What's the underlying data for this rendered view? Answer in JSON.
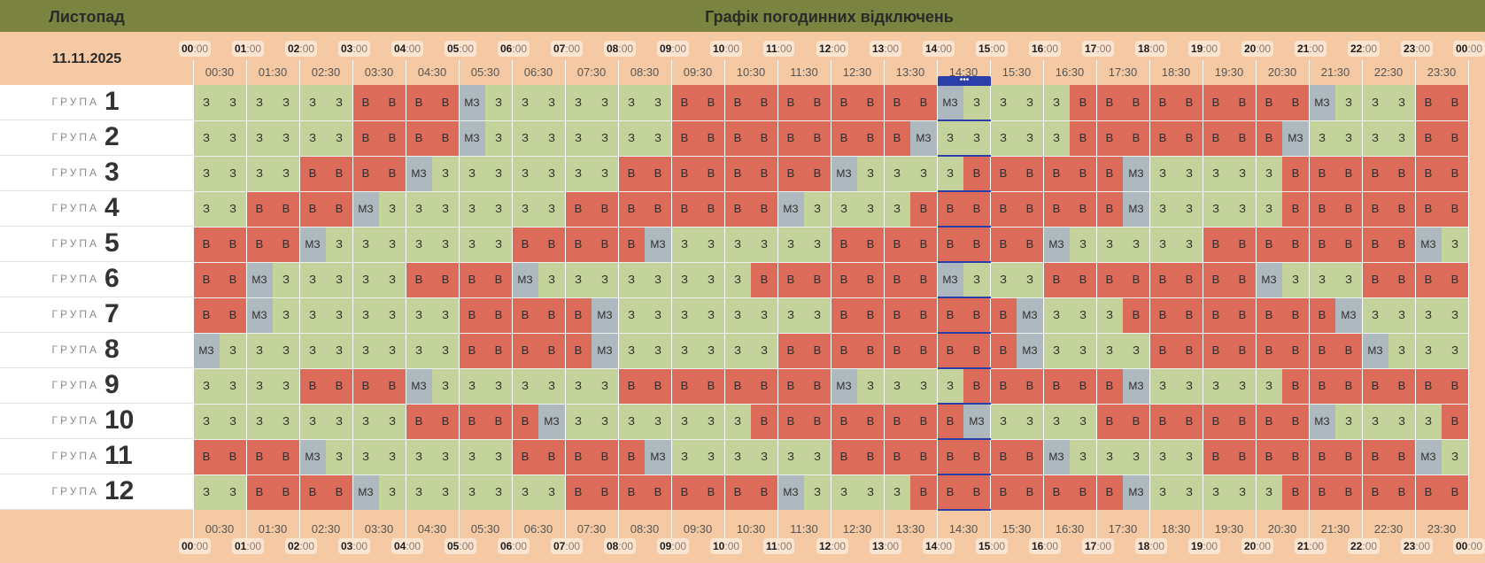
{
  "header": {
    "month": "Листопад",
    "title": "Графік погодинних відключень"
  },
  "date": "11.11.2025",
  "group_label": "ГРУПА",
  "now_marker": "•••",
  "hours": [
    "00",
    "01",
    "02",
    "03",
    "04",
    "05",
    "06",
    "07",
    "08",
    "09",
    "10",
    "11",
    "12",
    "13",
    "14",
    "15",
    "16",
    "17",
    "18",
    "19",
    "20",
    "21",
    "22",
    "23",
    "00"
  ],
  "hour_suffix": ":00",
  "half_hours": [
    "00:30",
    "01:30",
    "02:30",
    "03:30",
    "04:30",
    "05:30",
    "06:30",
    "07:30",
    "08:30",
    "09:30",
    "10:30",
    "11:30",
    "12:30",
    "13:30",
    "14:30",
    "15:30",
    "16:30",
    "17:30",
    "18:30",
    "19:30",
    "20:30",
    "21:30",
    "22:30",
    "23:30"
  ],
  "cell_text": {
    "z": "З",
    "v": "В",
    "m": "МЗ"
  },
  "colors": {
    "z": "#c4d39b",
    "v": "#dc6b5a",
    "m": "#aeb8bf",
    "header": "#7a8440",
    "background": "#f5c9a3",
    "now": "#2c3fa8"
  },
  "groups": [
    {
      "num": "1",
      "cells": "zzzzzzvvvvmzzzzzzzvvvvvvvvvvmzzzzvvvvvvvvvmzzzvvvvvvvvmzzz"
    },
    {
      "num": "2",
      "cells": "zzzzzzvvvvmzzzzzzzvvvvvvvvvmzzzzzvvvvvvvvmzzzzvvvvvvvvmzzzz"
    },
    {
      "num": "3",
      "cells": "zzzzvvvvmzzzzzzzvvvvvvvvmzzzzvvvvvvmzzzzzvvvvvvvvmzzzzzzz"
    },
    {
      "num": "4",
      "cells": "zzvvvvmzzzzzzzvvvvvvvvmzzzzvvvvvvvvmzzzzzvvvvvvvvmzzzzzvv"
    },
    {
      "num": "5",
      "cells": "vvvvmzzzzzzzvvvvvmzzzzzzvvvvvvvvmzzzzzvvvvvvvvmzzzzzvvvvvv"
    },
    {
      "num": "6",
      "cells": "vvmzzzzzvvvvmzzzzzzzzvvvvvvvmzzzvvvvvvvvmzzzvvvvvvvvvmzzz"
    },
    {
      "num": "7",
      "cells": "vvmzzzzzzzvvvvvmzzzzzzzzvvvvvvvmzzzvvvvvvvvmzzzzzvvvvvvvvv"
    },
    {
      "num": "8",
      "cells": "mzzzzzzzzzvvvvvmzzzzzzvvvvvvvvvmzzzzvvvvvvvvmzzzzvvvvvvmzz"
    },
    {
      "num": "9",
      "cells": "zzzzvvvvmzzzzzzzvvvvvvvvmzzzzvvvvvvmzzzzzvvvvvvvvmzzzzzzz"
    },
    {
      "num": "10",
      "cells": "zzzzzzzzvvvvvmzzzzzzzvvvvvvvvmzzzzvvvvvvvvmzzzzvvvvvvvvmzzz"
    },
    {
      "num": "11",
      "cells": "vvvvmzzzzzzzvvvvvmzzzzzzvvvvvvvvmzzzzzvvvvvvvvmzzzzzvvvvvv"
    },
    {
      "num": "12",
      "cells": "zzvvvvmzzzzzzzvvvvvvvvmzzzzvvvvvvvvmzzzzzvvvvvvvvmzzzzzvv"
    }
  ]
}
